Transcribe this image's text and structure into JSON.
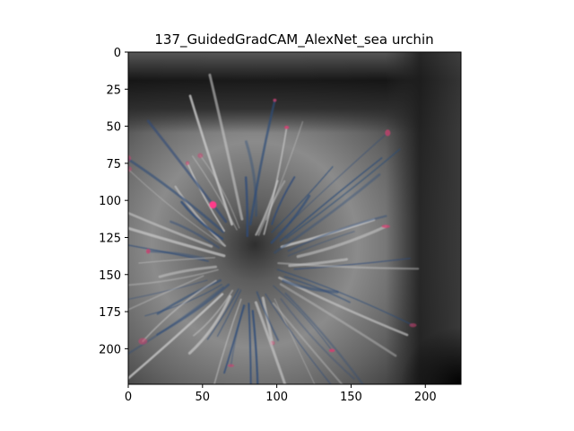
{
  "figure": {
    "title": "137_GuidedGradCAM_AlexNet_sea urchin"
  },
  "image": {
    "subject": "Guided Grad-CAM saliency map of a sea urchin",
    "x_range": [
      0,
      224
    ],
    "y_range": [
      0,
      224
    ],
    "x_ticks": [
      "0",
      "50",
      "100",
      "150",
      "200"
    ],
    "y_ticks": [
      "0",
      "25",
      "50",
      "75",
      "100",
      "125",
      "150",
      "175",
      "200"
    ],
    "colors": {
      "background_gray": "#7a7a7a",
      "dark_band": "#161616",
      "spine_red": "#d04070",
      "spine_blue": "#2b4a78"
    }
  }
}
